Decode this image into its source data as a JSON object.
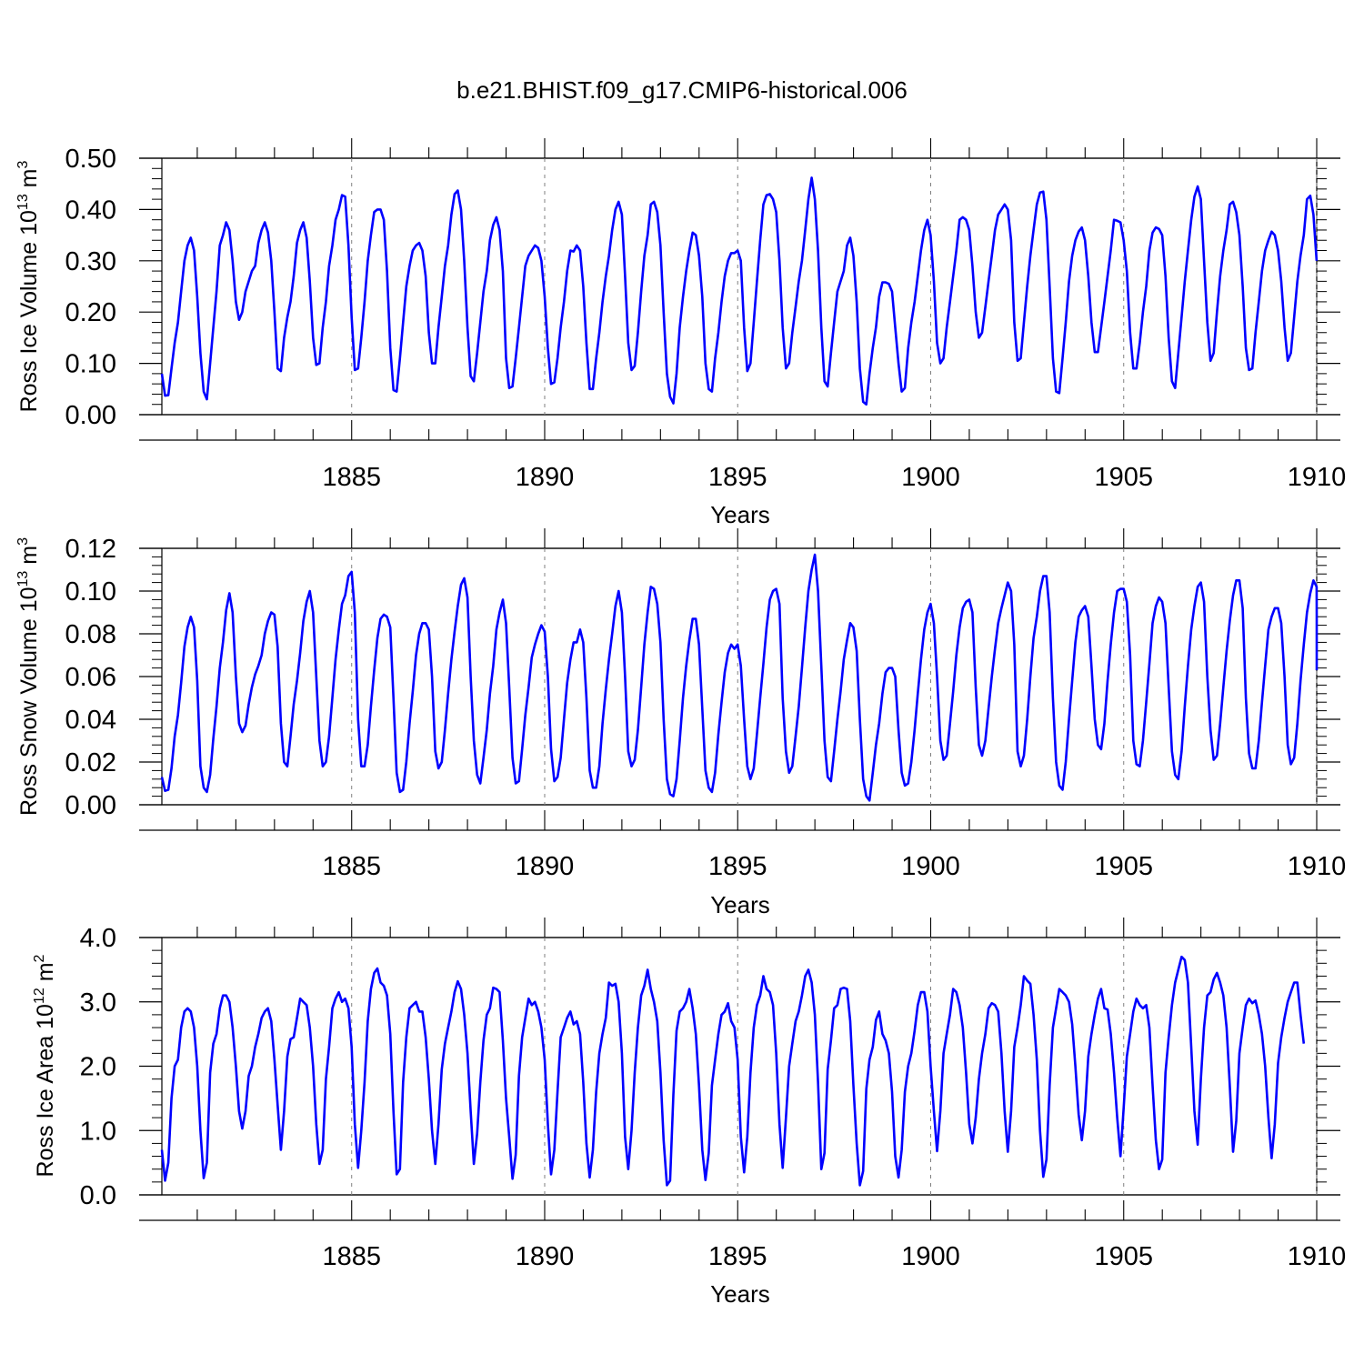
{
  "title": "b.e21.BHIST.f09_g17.CMIP6-historical.006",
  "colors": {
    "line": "#0000ff",
    "axis": "#000000",
    "grid": "#808080"
  },
  "chart_data": [
    {
      "type": "line",
      "name": "ross-ice-volume",
      "ylabel": {
        "text": "Ross Ice Volume 10",
        "sup1": "13",
        "unit": " m",
        "sup2": "3"
      },
      "xlabel": "Years",
      "xlim": [
        1880.083,
        1910.0
      ],
      "ylim": [
        0.0,
        0.5
      ],
      "yticks": [
        0.0,
        0.1,
        0.2,
        0.3,
        0.4,
        0.5
      ],
      "ytick_labels": [
        "0.00",
        "0.10",
        "0.20",
        "0.30",
        "0.40",
        "0.50"
      ],
      "xticks": [
        1885,
        1890,
        1895,
        1900,
        1905,
        1910
      ],
      "xtick_labels": [
        "1885",
        "1890",
        "1895",
        "1900",
        "1905",
        "1910"
      ],
      "start": 1880.083,
      "step": 0.08333,
      "values": [
        0.08,
        0.037,
        0.038,
        0.09,
        0.14,
        0.18,
        0.24,
        0.3,
        0.33,
        0.345,
        0.32,
        0.23,
        0.12,
        0.045,
        0.03,
        0.1,
        0.17,
        0.24,
        0.33,
        0.35,
        0.375,
        0.36,
        0.3,
        0.22,
        0.185,
        0.2,
        0.24,
        0.26,
        0.28,
        0.29,
        0.335,
        0.36,
        0.375,
        0.355,
        0.3,
        0.2,
        0.09,
        0.085,
        0.15,
        0.19,
        0.22,
        0.27,
        0.335,
        0.36,
        0.375,
        0.345,
        0.26,
        0.15,
        0.097,
        0.1,
        0.17,
        0.22,
        0.29,
        0.33,
        0.38,
        0.4,
        0.428,
        0.425,
        0.33,
        0.19,
        0.087,
        0.09,
        0.15,
        0.22,
        0.3,
        0.35,
        0.395,
        0.4,
        0.4,
        0.38,
        0.28,
        0.13,
        0.048,
        0.045,
        0.11,
        0.18,
        0.25,
        0.29,
        0.32,
        0.33,
        0.335,
        0.32,
        0.27,
        0.16,
        0.1,
        0.1,
        0.17,
        0.23,
        0.29,
        0.33,
        0.39,
        0.43,
        0.437,
        0.4,
        0.3,
        0.17,
        0.075,
        0.065,
        0.12,
        0.18,
        0.24,
        0.28,
        0.34,
        0.37,
        0.385,
        0.36,
        0.28,
        0.11,
        0.052,
        0.055,
        0.11,
        0.17,
        0.23,
        0.29,
        0.31,
        0.32,
        0.33,
        0.325,
        0.3,
        0.23,
        0.13,
        0.06,
        0.063,
        0.11,
        0.17,
        0.22,
        0.28,
        0.32,
        0.318,
        0.33,
        0.32,
        0.25,
        0.14,
        0.05,
        0.05,
        0.11,
        0.16,
        0.22,
        0.27,
        0.31,
        0.36,
        0.4,
        0.415,
        0.39,
        0.27,
        0.14,
        0.087,
        0.095,
        0.16,
        0.24,
        0.31,
        0.35,
        0.41,
        0.415,
        0.395,
        0.33,
        0.2,
        0.08,
        0.035,
        0.022,
        0.08,
        0.17,
        0.23,
        0.28,
        0.32,
        0.355,
        0.35,
        0.31,
        0.23,
        0.1,
        0.05,
        0.045,
        0.11,
        0.16,
        0.22,
        0.27,
        0.3,
        0.315,
        0.315,
        0.32,
        0.3,
        0.17,
        0.085,
        0.1,
        0.18,
        0.26,
        0.34,
        0.41,
        0.428,
        0.43,
        0.42,
        0.395,
        0.3,
        0.17,
        0.09,
        0.1,
        0.16,
        0.21,
        0.26,
        0.3,
        0.36,
        0.42,
        0.462,
        0.42,
        0.32,
        0.17,
        0.065,
        0.055,
        0.12,
        0.18,
        0.24,
        0.26,
        0.28,
        0.33,
        0.345,
        0.31,
        0.22,
        0.09,
        0.025,
        0.02,
        0.08,
        0.13,
        0.17,
        0.23,
        0.258,
        0.258,
        0.255,
        0.24,
        0.17,
        0.1,
        0.045,
        0.052,
        0.13,
        0.18,
        0.22,
        0.27,
        0.32,
        0.36,
        0.38,
        0.35,
        0.26,
        0.14,
        0.1,
        0.11,
        0.17,
        0.22,
        0.27,
        0.32,
        0.38,
        0.385,
        0.38,
        0.36,
        0.29,
        0.2,
        0.15,
        0.16,
        0.21,
        0.26,
        0.31,
        0.36,
        0.39,
        0.4,
        0.41,
        0.4,
        0.34,
        0.18,
        0.105,
        0.11,
        0.18,
        0.25,
        0.31,
        0.36,
        0.41,
        0.433,
        0.435,
        0.38,
        0.25,
        0.11,
        0.045,
        0.042,
        0.11,
        0.18,
        0.26,
        0.31,
        0.34,
        0.357,
        0.365,
        0.34,
        0.27,
        0.18,
        0.122,
        0.122,
        0.17,
        0.22,
        0.27,
        0.32,
        0.38,
        0.378,
        0.375,
        0.34,
        0.28,
        0.16,
        0.09,
        0.09,
        0.14,
        0.2,
        0.25,
        0.32,
        0.355,
        0.365,
        0.362,
        0.35,
        0.27,
        0.15,
        0.065,
        0.052,
        0.12,
        0.19,
        0.26,
        0.32,
        0.38,
        0.425,
        0.445,
        0.42,
        0.3,
        0.18,
        0.105,
        0.12,
        0.2,
        0.27,
        0.32,
        0.36,
        0.41,
        0.415,
        0.395,
        0.35,
        0.25,
        0.13,
        0.087,
        0.09,
        0.16,
        0.22,
        0.28,
        0.32,
        0.34,
        0.357,
        0.35,
        0.32,
        0.26,
        0.17,
        0.105,
        0.12,
        0.19,
        0.26,
        0.31,
        0.35,
        0.42,
        0.427,
        0.39,
        0.3
      ]
    },
    {
      "type": "line",
      "name": "ross-snow-volume",
      "ylabel": {
        "text": "Ross Snow Volume 10",
        "sup1": "13",
        "unit": " m",
        "sup2": "3"
      },
      "xlabel": "Years",
      "xlim": [
        1880.083,
        1910.0
      ],
      "ylim": [
        0.0,
        0.12
      ],
      "yticks": [
        0.0,
        0.02,
        0.04,
        0.06,
        0.08,
        0.1,
        0.12
      ],
      "ytick_labels": [
        "0.00",
        "0.02",
        "0.04",
        "0.06",
        "0.08",
        "0.10",
        "0.12"
      ],
      "xticks": [
        1885,
        1890,
        1895,
        1900,
        1905,
        1910
      ],
      "xtick_labels": [
        "1885",
        "1890",
        "1895",
        "1900",
        "1905",
        "1910"
      ],
      "start": 1880.083,
      "step": 0.08333,
      "values": [
        0.013,
        0.0065,
        0.007,
        0.017,
        0.032,
        0.042,
        0.057,
        0.074,
        0.083,
        0.088,
        0.083,
        0.058,
        0.018,
        0.008,
        0.006,
        0.014,
        0.031,
        0.046,
        0.064,
        0.076,
        0.091,
        0.099,
        0.09,
        0.06,
        0.038,
        0.034,
        0.037,
        0.047,
        0.055,
        0.061,
        0.065,
        0.07,
        0.08,
        0.086,
        0.09,
        0.089,
        0.074,
        0.038,
        0.02,
        0.018,
        0.032,
        0.047,
        0.058,
        0.071,
        0.086,
        0.095,
        0.1,
        0.09,
        0.06,
        0.03,
        0.018,
        0.02,
        0.032,
        0.05,
        0.068,
        0.082,
        0.094,
        0.098,
        0.107,
        0.109,
        0.09,
        0.04,
        0.018,
        0.018,
        0.028,
        0.046,
        0.063,
        0.078,
        0.087,
        0.089,
        0.088,
        0.083,
        0.05,
        0.015,
        0.006,
        0.007,
        0.02,
        0.038,
        0.053,
        0.07,
        0.08,
        0.085,
        0.085,
        0.082,
        0.06,
        0.025,
        0.017,
        0.02,
        0.035,
        0.052,
        0.068,
        0.081,
        0.093,
        0.103,
        0.106,
        0.097,
        0.06,
        0.03,
        0.014,
        0.01,
        0.022,
        0.035,
        0.052,
        0.065,
        0.082,
        0.09,
        0.096,
        0.085,
        0.055,
        0.022,
        0.01,
        0.011,
        0.026,
        0.042,
        0.055,
        0.069,
        0.075,
        0.08,
        0.084,
        0.081,
        0.06,
        0.026,
        0.011,
        0.013,
        0.022,
        0.04,
        0.057,
        0.068,
        0.076,
        0.076,
        0.082,
        0.076,
        0.05,
        0.016,
        0.008,
        0.008,
        0.018,
        0.038,
        0.054,
        0.068,
        0.08,
        0.093,
        0.1,
        0.09,
        0.06,
        0.025,
        0.018,
        0.021,
        0.035,
        0.055,
        0.075,
        0.09,
        0.102,
        0.101,
        0.094,
        0.076,
        0.04,
        0.012,
        0.005,
        0.004,
        0.012,
        0.03,
        0.05,
        0.065,
        0.077,
        0.087,
        0.087,
        0.075,
        0.045,
        0.016,
        0.008,
        0.006,
        0.015,
        0.033,
        0.048,
        0.062,
        0.071,
        0.075,
        0.073,
        0.075,
        0.065,
        0.04,
        0.018,
        0.012,
        0.017,
        0.033,
        0.05,
        0.066,
        0.083,
        0.096,
        0.1,
        0.101,
        0.094,
        0.05,
        0.025,
        0.015,
        0.018,
        0.032,
        0.046,
        0.064,
        0.083,
        0.1,
        0.11,
        0.117,
        0.1,
        0.065,
        0.03,
        0.013,
        0.011,
        0.025,
        0.04,
        0.053,
        0.068,
        0.077,
        0.085,
        0.083,
        0.072,
        0.04,
        0.012,
        0.004,
        0.002,
        0.015,
        0.028,
        0.038,
        0.052,
        0.062,
        0.064,
        0.064,
        0.06,
        0.035,
        0.015,
        0.009,
        0.01,
        0.02,
        0.035,
        0.052,
        0.068,
        0.082,
        0.09,
        0.094,
        0.085,
        0.06,
        0.03,
        0.021,
        0.023,
        0.038,
        0.053,
        0.07,
        0.083,
        0.092,
        0.095,
        0.096,
        0.09,
        0.055,
        0.028,
        0.023,
        0.03,
        0.045,
        0.06,
        0.073,
        0.085,
        0.092,
        0.098,
        0.104,
        0.1,
        0.075,
        0.025,
        0.018,
        0.023,
        0.04,
        0.06,
        0.078,
        0.088,
        0.1,
        0.107,
        0.107,
        0.09,
        0.05,
        0.02,
        0.009,
        0.007,
        0.02,
        0.04,
        0.058,
        0.076,
        0.088,
        0.091,
        0.093,
        0.088,
        0.065,
        0.04,
        0.028,
        0.026,
        0.038,
        0.058,
        0.075,
        0.09,
        0.1,
        0.101,
        0.101,
        0.095,
        0.07,
        0.03,
        0.019,
        0.018,
        0.03,
        0.048,
        0.066,
        0.085,
        0.093,
        0.097,
        0.095,
        0.085,
        0.055,
        0.025,
        0.014,
        0.012,
        0.025,
        0.046,
        0.065,
        0.082,
        0.093,
        0.102,
        0.104,
        0.095,
        0.06,
        0.035,
        0.021,
        0.023,
        0.038,
        0.055,
        0.072,
        0.086,
        0.098,
        0.105,
        0.105,
        0.092,
        0.05,
        0.024,
        0.017,
        0.017,
        0.03,
        0.048,
        0.065,
        0.082,
        0.088,
        0.092,
        0.092,
        0.085,
        0.06,
        0.028,
        0.019,
        0.022,
        0.038,
        0.058,
        0.075,
        0.09,
        0.099,
        0.105,
        0.102,
        0.09,
        0.063
      ]
    },
    {
      "type": "line",
      "name": "ross-ice-area",
      "ylabel": {
        "text": "Ross Ice Area 10",
        "sup1": "12",
        "unit": " m",
        "sup2": "2"
      },
      "xlabel": "Years",
      "xlim": [
        1880.083,
        1910.0
      ],
      "ylim": [
        0.0,
        4.0
      ],
      "yticks": [
        0.0,
        1.0,
        2.0,
        3.0,
        4.0
      ],
      "ytick_labels": [
        "0.0",
        "1.0",
        "2.0",
        "3.0",
        "4.0"
      ],
      "xticks": [
        1885,
        1890,
        1895,
        1900,
        1905,
        1910
      ],
      "xtick_labels": [
        "1885",
        "1890",
        "1895",
        "1900",
        "1905",
        "1910"
      ],
      "start": 1880.083,
      "step": 0.08333,
      "values": [
        0.7,
        0.22,
        0.5,
        1.5,
        2.0,
        2.1,
        2.6,
        2.85,
        2.9,
        2.85,
        2.6,
        2.0,
        1.0,
        0.26,
        0.5,
        1.9,
        2.35,
        2.5,
        2.9,
        3.1,
        3.1,
        3.0,
        2.6,
        2.0,
        1.3,
        1.03,
        1.3,
        1.85,
        2.0,
        2.3,
        2.5,
        2.75,
        2.85,
        2.9,
        2.7,
        2.1,
        1.4,
        0.7,
        1.3,
        2.15,
        2.42,
        2.45,
        2.75,
        3.05,
        3.0,
        2.95,
        2.6,
        2.0,
        1.1,
        0.48,
        0.7,
        1.8,
        2.3,
        2.9,
        3.05,
        3.15,
        3.0,
        3.05,
        2.9,
        2.3,
        1.1,
        0.42,
        1.0,
        1.75,
        2.7,
        3.2,
        3.45,
        3.52,
        3.3,
        3.25,
        3.1,
        2.5,
        1.3,
        0.32,
        0.4,
        1.75,
        2.45,
        2.9,
        2.95,
        3.0,
        2.85,
        2.85,
        2.45,
        1.8,
        1.0,
        0.48,
        1.1,
        1.95,
        2.35,
        2.6,
        2.85,
        3.15,
        3.32,
        3.2,
        2.8,
        2.2,
        1.3,
        0.48,
        0.95,
        1.75,
        2.4,
        2.8,
        2.9,
        3.22,
        3.2,
        3.15,
        2.4,
        1.5,
        0.9,
        0.25,
        0.62,
        1.85,
        2.45,
        2.75,
        3.05,
        2.95,
        3.0,
        2.85,
        2.6,
        2.1,
        1.1,
        0.32,
        0.7,
        1.6,
        2.45,
        2.6,
        2.75,
        2.85,
        2.65,
        2.7,
        2.5,
        1.75,
        0.8,
        0.27,
        0.7,
        1.6,
        2.2,
        2.5,
        2.75,
        3.3,
        3.25,
        3.28,
        3.0,
        2.2,
        0.9,
        0.4,
        1.0,
        1.9,
        2.6,
        3.1,
        3.25,
        3.5,
        3.2,
        3.0,
        2.7,
        1.9,
        0.85,
        0.15,
        0.22,
        1.55,
        2.55,
        2.85,
        2.9,
        3.0,
        3.2,
        2.9,
        2.5,
        1.7,
        0.7,
        0.23,
        0.65,
        1.7,
        2.1,
        2.5,
        2.8,
        2.85,
        2.98,
        2.7,
        2.6,
        2.1,
        0.9,
        0.35,
        0.9,
        1.9,
        2.6,
        2.95,
        3.1,
        3.4,
        3.2,
        3.15,
        2.95,
        2.2,
        1.1,
        0.42,
        1.2,
        2.0,
        2.35,
        2.7,
        2.85,
        3.1,
        3.4,
        3.5,
        3.3,
        2.8,
        1.75,
        0.4,
        0.65,
        1.95,
        2.4,
        2.9,
        2.95,
        3.2,
        3.22,
        3.2,
        2.7,
        1.7,
        0.8,
        0.15,
        0.37,
        1.65,
        2.1,
        2.3,
        2.72,
        2.85,
        2.5,
        2.4,
        2.2,
        1.6,
        0.6,
        0.27,
        0.7,
        1.6,
        2.0,
        2.2,
        2.55,
        2.95,
        3.15,
        3.15,
        2.85,
        2.0,
        1.3,
        0.68,
        1.3,
        2.2,
        2.5,
        2.8,
        3.2,
        3.15,
        2.95,
        2.6,
        1.9,
        1.1,
        0.8,
        1.2,
        1.8,
        2.2,
        2.5,
        2.9,
        2.98,
        2.95,
        2.85,
        2.2,
        1.3,
        0.67,
        1.3,
        2.3,
        2.6,
        2.95,
        3.4,
        3.33,
        3.28,
        2.8,
        2.1,
        1.0,
        0.28,
        0.55,
        1.7,
        2.6,
        2.9,
        3.2,
        3.15,
        3.1,
        3.0,
        2.65,
        2.0,
        1.25,
        0.85,
        1.3,
        2.15,
        2.5,
        2.8,
        3.05,
        3.2,
        2.9,
        2.88,
        2.5,
        1.9,
        1.2,
        0.6,
        1.35,
        2.15,
        2.5,
        2.85,
        3.05,
        2.95,
        2.9,
        2.95,
        2.6,
        1.7,
        0.85,
        0.4,
        0.55,
        1.9,
        2.45,
        2.95,
        3.3,
        3.5,
        3.7,
        3.65,
        3.3,
        2.3,
        1.3,
        0.78,
        1.8,
        2.6,
        3.1,
        3.15,
        3.35,
        3.45,
        3.3,
        3.1,
        2.6,
        1.7,
        0.67,
        1.15,
        2.2,
        2.6,
        2.95,
        3.05,
        2.98,
        3.02,
        2.8,
        2.5,
        2.0,
        1.2,
        0.57,
        1.1,
        2.05,
        2.45,
        2.75,
        3.0,
        3.15,
        3.3,
        3.3,
        2.8,
        2.35
      ]
    }
  ]
}
